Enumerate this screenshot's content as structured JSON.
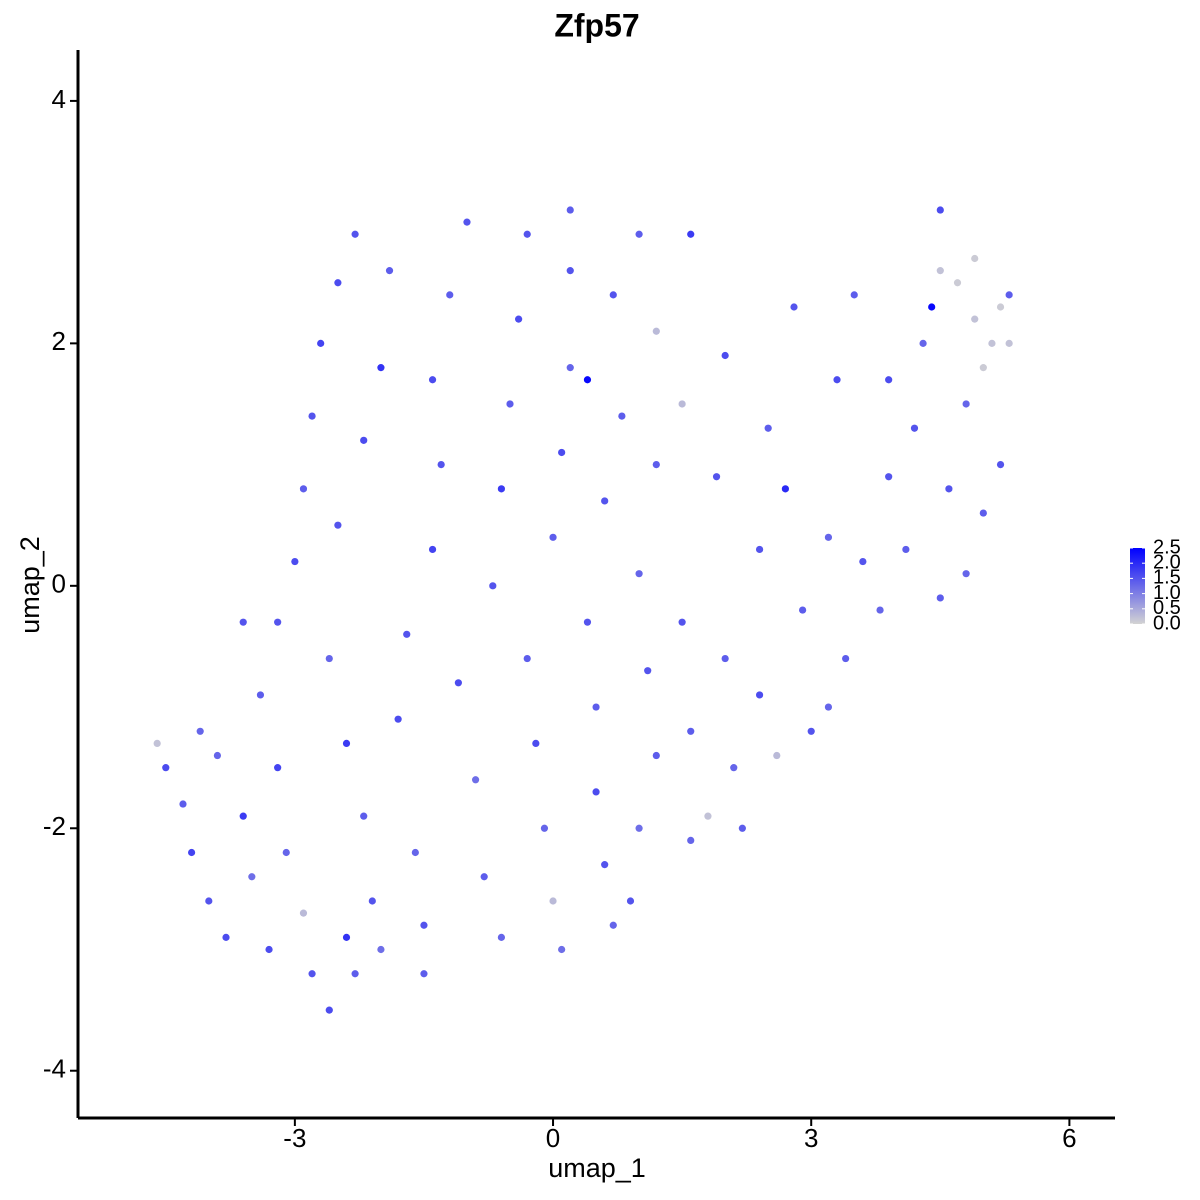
{
  "chart_data": {
    "type": "scatter",
    "title": "Zfp57",
    "xlabel": "umap_1",
    "ylabel": "umap_2",
    "xlim": [
      -5.52,
      6.53
    ],
    "ylim": [
      -4.39,
      4.42
    ],
    "xticks": [
      -3,
      0,
      3,
      6
    ],
    "yticks": [
      -4,
      -2,
      0,
      2,
      4
    ],
    "color_low": "#d3d3d3",
    "color_high": "#0000ff",
    "colorbar": {
      "lim": [
        0,
        2.5
      ],
      "ticks": [
        {
          "value": 0,
          "label": "0.0"
        },
        {
          "value": 0.5,
          "label": "0.5"
        },
        {
          "value": 1,
          "label": "1.0"
        },
        {
          "value": 1.5,
          "label": "1.5"
        },
        {
          "value": 2,
          "label": "2.0"
        },
        {
          "value": 2.5,
          "label": "2.5"
        }
      ]
    },
    "x": [
      -4.6,
      -4.5,
      -4.3,
      -4.2,
      -4.0,
      -3.8,
      -3.9,
      -3.6,
      -3.5,
      -3.3,
      -3.6,
      -3.4,
      -3.2,
      -3.1,
      -2.9,
      -2.8,
      -2.6,
      -2.4,
      -2.3,
      -2.1,
      -2.0,
      -3.0,
      -2.9,
      -2.8,
      -2.7,
      -2.5,
      -2.3,
      -2.6,
      -2.4,
      -2.2,
      -2.5,
      -2.2,
      -2.0,
      -1.9,
      -1.7,
      -1.8,
      -1.6,
      -1.5,
      -1.5,
      -1.4,
      -1.3,
      -1.4,
      -1.2,
      -1.0,
      -1.1,
      -0.9,
      -0.8,
      -0.6,
      -0.7,
      -0.6,
      -0.5,
      -0.4,
      -0.3,
      -0.3,
      -0.2,
      -0.1,
      0.0,
      0.1,
      0.0,
      0.1,
      0.2,
      0.2,
      0.2,
      0.4,
      0.5,
      0.5,
      0.6,
      0.7,
      0.4,
      0.6,
      0.8,
      0.7,
      1.0,
      1.0,
      1.1,
      1.2,
      1.0,
      0.9,
      1.2,
      1.2,
      1.6,
      1.5,
      1.6,
      1.6,
      1.5,
      1.9,
      2.0,
      2.0,
      2.1,
      2.4,
      2.5,
      2.4,
      2.6,
      2.7,
      2.8,
      2.9,
      3.0,
      3.2,
      3.3,
      3.4,
      3.6,
      3.5,
      3.8,
      3.9,
      3.9,
      4.1,
      4.2,
      4.3,
      4.4,
      4.5,
      4.5,
      4.5,
      4.7,
      4.6,
      4.8,
      4.9,
      5.0,
      5.1,
      5.2,
      5.3,
      5.0,
      5.2,
      4.8,
      4.9,
      5.3,
      3.2,
      2.2,
      1.8,
      -3.2,
      -4.1
    ],
    "y": [
      -1.3,
      -1.5,
      -1.8,
      -2.2,
      -2.6,
      -2.9,
      -1.4,
      -1.9,
      -2.4,
      -3.0,
      -0.3,
      -0.9,
      -1.5,
      -2.2,
      -2.7,
      -3.2,
      -3.5,
      -2.9,
      -3.2,
      -2.6,
      -3.0,
      0.2,
      0.8,
      1.4,
      2.0,
      2.5,
      2.9,
      -0.6,
      -1.3,
      -1.9,
      0.5,
      1.2,
      1.8,
      2.6,
      -0.4,
      -1.1,
      -2.2,
      -2.8,
      -3.2,
      0.3,
      1.0,
      1.7,
      2.4,
      3.0,
      -0.8,
      -1.6,
      -2.4,
      -2.9,
      0.0,
      0.8,
      1.5,
      2.2,
      2.9,
      -0.6,
      -1.3,
      -2.0,
      -2.6,
      -3.0,
      0.4,
      1.1,
      1.8,
      2.6,
      3.1,
      -0.3,
      -1.0,
      -1.7,
      -2.3,
      -2.8,
      1.7,
      0.7,
      1.4,
      2.4,
      2.9,
      0.1,
      -0.7,
      -1.4,
      -2.0,
      -2.6,
      1.0,
      2.1,
      2.9,
      -0.3,
      -1.2,
      -2.1,
      1.5,
      0.9,
      -0.6,
      1.9,
      -1.5,
      0.3,
      1.3,
      -0.9,
      -1.4,
      0.8,
      2.3,
      -0.2,
      -1.2,
      0.4,
      1.7,
      -0.6,
      0.2,
      2.4,
      -0.2,
      0.9,
      1.7,
      0.3,
      1.3,
      2.0,
      2.3,
      -0.1,
      3.1,
      2.6,
      2.5,
      0.8,
      1.5,
      2.2,
      1.8,
      2.0,
      2.3,
      2.0,
      0.6,
      1.0,
      0.1,
      2.7,
      2.4,
      -1.0,
      -2.0,
      -1.9,
      -0.3,
      -1.2
    ],
    "values": [
      0.2,
      1.6,
      1.4,
      1.7,
      1.5,
      1.6,
      1.3,
      1.8,
      1.2,
      1.6,
      1.5,
      1.4,
      1.7,
      1.3,
      0.3,
      1.5,
      1.6,
      1.9,
      1.4,
      1.5,
      1.2,
      1.6,
      1.4,
      1.5,
      1.7,
      1.6,
      1.5,
      1.3,
      1.8,
      1.4,
      1.5,
      1.6,
      1.9,
      1.4,
      1.5,
      1.6,
      1.3,
      1.5,
      1.4,
      1.7,
      1.5,
      1.6,
      1.4,
      1.5,
      1.6,
      1.2,
      1.4,
      1.3,
      1.5,
      1.8,
      1.4,
      1.6,
      1.5,
      1.4,
      1.6,
      1.3,
      0.3,
      1.2,
      1.4,
      1.6,
      1.3,
      1.5,
      1.4,
      1.5,
      1.4,
      1.6,
      1.5,
      1.3,
      2.4,
      1.5,
      1.4,
      1.5,
      1.4,
      1.3,
      1.5,
      1.4,
      1.2,
      1.5,
      1.4,
      0.3,
      1.8,
      1.5,
      1.4,
      1.3,
      0.3,
      1.5,
      1.4,
      1.6,
      1.3,
      1.5,
      1.4,
      1.6,
      0.3,
      2.0,
      1.5,
      1.4,
      1.5,
      1.3,
      1.6,
      1.4,
      1.5,
      1.4,
      1.3,
      1.5,
      1.6,
      1.4,
      1.5,
      1.3,
      2.4,
      1.4,
      1.6,
      0.2,
      0.1,
      1.5,
      1.3,
      0.2,
      0.1,
      0.2,
      0.1,
      0.2,
      1.4,
      1.5,
      1.3,
      0.1,
      1.4,
      1.3,
      1.4,
      0.2,
      1.5,
      1.3
    ]
  }
}
